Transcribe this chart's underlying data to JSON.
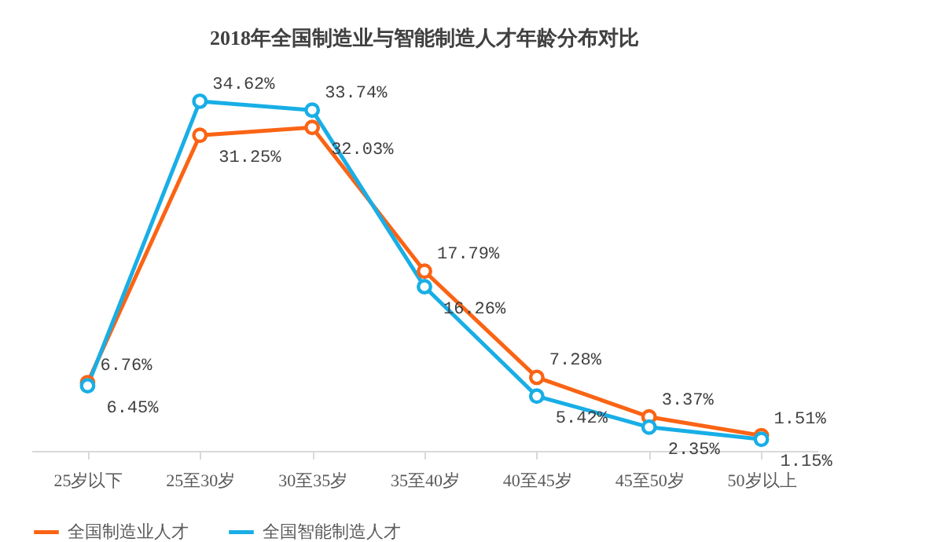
{
  "chart_data": {
    "type": "line",
    "title": "2018年全国制造业与智能制造人才年龄分布对比",
    "categories": [
      "25岁以下",
      "25至30岁",
      "30至35岁",
      "35至40岁",
      "40至45岁",
      "45至50岁",
      "50岁以上"
    ],
    "series": [
      {
        "name": "全国制造业人才",
        "color": "#fa6414",
        "values": [
          6.76,
          31.25,
          32.03,
          17.79,
          7.28,
          3.37,
          1.51
        ],
        "value_labels": [
          "6.76%",
          "31.25%",
          "32.03%",
          "17.79%",
          "7.28%",
          "3.37%",
          "1.51%"
        ]
      },
      {
        "name": "全国智能制造人才",
        "color": "#18aee6",
        "values": [
          6.45,
          34.62,
          33.74,
          16.26,
          5.42,
          2.35,
          1.15
        ],
        "value_labels": [
          "6.45%",
          "34.62%",
          "33.74%",
          "16.26%",
          "5.42%",
          "2.35%",
          "1.15%"
        ]
      }
    ],
    "tick_labels": "x",
    "grid": false,
    "legend": "bottom",
    "marker": "circle",
    "line_style": "solid"
  }
}
